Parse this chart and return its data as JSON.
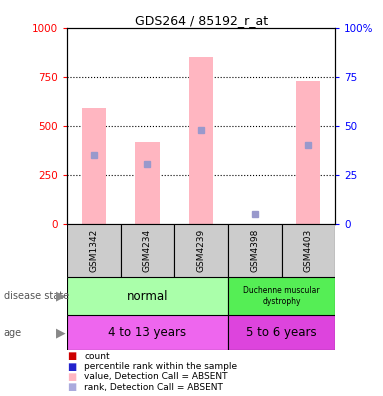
{
  "title": "GDS264 / 85192_r_at",
  "samples": [
    "GSM1342",
    "GSM4234",
    "GSM4239",
    "GSM4398",
    "GSM4403"
  ],
  "bar_values": [
    590,
    415,
    850,
    0,
    730
  ],
  "rank_values": [
    350,
    305,
    480,
    50,
    400
  ],
  "left_ylim": [
    0,
    1000
  ],
  "right_ylim": [
    0,
    100
  ],
  "yticks_left": [
    0,
    250,
    500,
    750,
    1000
  ],
  "yticks_right": [
    0,
    25,
    50,
    75,
    100
  ],
  "bar_color": "#FFB6C1",
  "rank_color": "#9999CC",
  "count_color": "#CC0000",
  "normal_bg": "#AAFFAA",
  "dmd_bg": "#55EE55",
  "age_normal_bg": "#EE66EE",
  "age_dmd_bg": "#DD44DD",
  "sample_bg": "#CCCCCC",
  "legend_colors": [
    "#CC0000",
    "#2222CC",
    "#FFB6C1",
    "#AAAADD"
  ],
  "legend_labels": [
    "count",
    "percentile rank within the sample",
    "value, Detection Call = ABSENT",
    "rank, Detection Call = ABSENT"
  ]
}
